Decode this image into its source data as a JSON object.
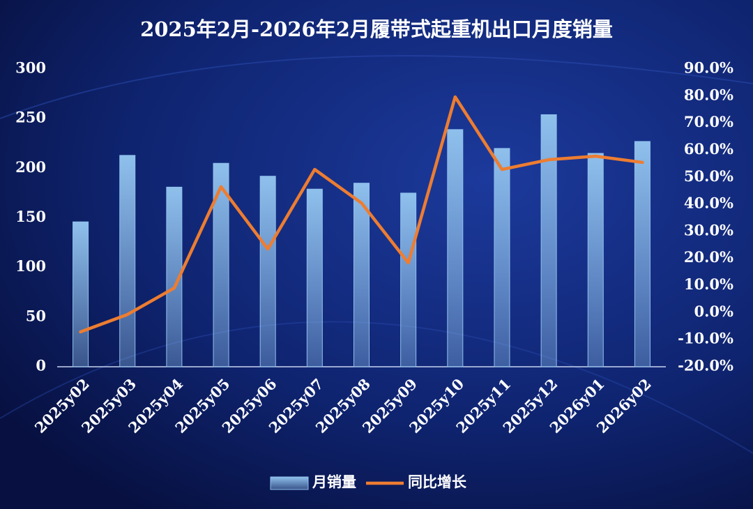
{
  "chart_data": {
    "type": "bar_line",
    "title": "2025年2月-2026年2月履带式起重机出口月度销量",
    "categories": [
      "2025y02",
      "2025y03",
      "2025y04",
      "2025y05",
      "2025y06",
      "2025y07",
      "2025y08",
      "2025y09",
      "2025y10",
      "2025y11",
      "2025y12",
      "2026y01",
      "2026y02"
    ],
    "series": [
      {
        "name": "月销量",
        "type": "bar",
        "color": "#8fc0ec",
        "values": [
          146,
          213,
          181,
          205,
          192,
          179,
          185,
          175,
          239,
          220,
          254,
          215,
          227
        ]
      },
      {
        "name": "同比增长",
        "type": "line",
        "axis": "y2",
        "color": "#ed7d31",
        "values": [
          -7.1,
          -0.7,
          9.1,
          46.5,
          23.5,
          52.9,
          40.5,
          18.4,
          79.7,
          52.9,
          56.5,
          57.8,
          55.5
        ]
      }
    ],
    "ylim": [
      0,
      300
    ],
    "yticks": [
      0,
      50,
      100,
      150,
      200,
      250,
      300
    ],
    "y2lim": [
      -20,
      90
    ],
    "y2ticks": [
      {
        "value": -20,
        "label": "-20.0%"
      },
      {
        "value": -10,
        "label": "-10.0%"
      },
      {
        "value": 0,
        "label": "0.0%"
      },
      {
        "value": 10,
        "label": "10.0%"
      },
      {
        "value": 20,
        "label": "20.0%"
      },
      {
        "value": 30,
        "label": "30.0%"
      },
      {
        "value": 40,
        "label": "40.0%"
      },
      {
        "value": 50,
        "label": "50.0%"
      },
      {
        "value": 60,
        "label": "60.0%"
      },
      {
        "value": 70,
        "label": "70.0%"
      },
      {
        "value": 80,
        "label": "80.0%"
      },
      {
        "value": 90,
        "label": "90.0%"
      }
    ],
    "legend": "bottom"
  }
}
